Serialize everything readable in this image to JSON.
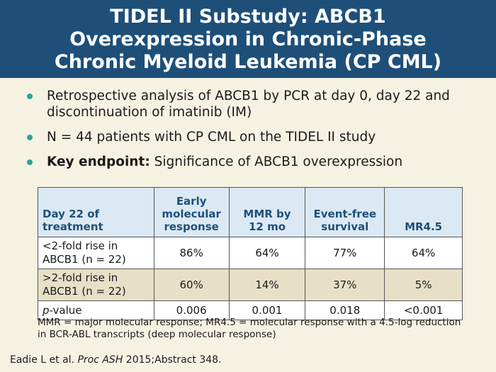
{
  "title": {
    "lines": [
      "TIDEL II Substudy: ABCB1",
      "Overexpression in Chronic-Phase",
      "Chronic Myeloid Leukemia (CP CML)"
    ]
  },
  "bullets": [
    {
      "bold": "",
      "text": "Retrospective analysis of ABCB1 by PCR at day 0, day 22 and discontinuation of imatinib (IM)"
    },
    {
      "bold": "",
      "text": "N = 44 patients with CP CML on the TIDEL II study"
    },
    {
      "bold": "Key endpoint:",
      "text": " Significance of ABCB1 overexpression"
    }
  ],
  "table": {
    "headers": [
      {
        "l1": "Day 22 of",
        "l2": "treatment",
        "l0": ""
      },
      {
        "l0": "Early",
        "l1": "molecular",
        "l2": "response"
      },
      {
        "l0": "",
        "l1": "MMR by",
        "l2": "12 mo"
      },
      {
        "l0": "",
        "l1": "Event-free",
        "l2": "survival"
      },
      {
        "l0": "",
        "l1": "",
        "l2": "MR4.5"
      }
    ],
    "rows": [
      {
        "label_l1": "<2-fold rise in",
        "label_l2": "ABCB1 (n = 22)",
        "values": [
          "86%",
          "64%",
          "77%",
          "64%"
        ]
      },
      {
        "label_l1": ">2-fold rise in",
        "label_l2": "ABCB1 (n = 22)",
        "values": [
          "60%",
          "14%",
          "37%",
          "5%"
        ]
      }
    ],
    "pvalue_row": {
      "label_italic": "p",
      "label_rest": "-value",
      "values": [
        "0.006",
        "0.001",
        "0.018",
        "<0.001"
      ]
    }
  },
  "footnote": "MMR = major molecular response; MR4.5 = molecular response with a 4.5-log reduction in BCR-ABL transcripts (deep molecular response)",
  "citation": {
    "prefix": "Eadie L et al. ",
    "journal": "Proc ASH",
    "suffix": " 2015;Abstract 348."
  },
  "colors": {
    "title_bg": "#1e4f79",
    "slide_bg": "#f6f2e2",
    "bullet": "#2aa39a",
    "header_bg": "#dbe9f4",
    "header_text": "#1e4f79",
    "row_alt": "#e7e0c6"
  }
}
